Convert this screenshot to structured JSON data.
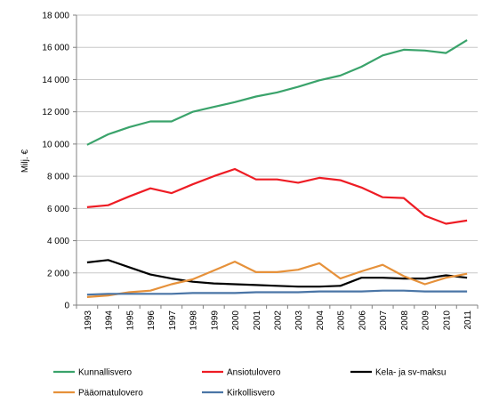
{
  "chart_data": {
    "type": "line",
    "title": "",
    "xlabel": "",
    "ylabel": "Milj. €",
    "ylim": [
      0,
      18000
    ],
    "y_ticks": [
      0,
      2000,
      4000,
      6000,
      8000,
      10000,
      12000,
      14000,
      16000,
      18000
    ],
    "y_tick_labels": [
      "0",
      "2 000",
      "4 000",
      "6 000",
      "8 000",
      "10 000",
      "12 000",
      "14 000",
      "16 000",
      "18 000"
    ],
    "categories": [
      "1993",
      "1994",
      "1995",
      "1996",
      "1997",
      "1998",
      "1999",
      "2000",
      "2001",
      "2002",
      "2003",
      "2004",
      "2005",
      "2006",
      "2007",
      "2008",
      "2009",
      "2010",
      "2011"
    ],
    "grid": "horizontal",
    "legend_position": "bottom",
    "series": [
      {
        "name": "Kunnallisvero",
        "color": "#3aa36b",
        "values": [
          9950,
          10600,
          11050,
          11400,
          11400,
          12000,
          12300,
          12600,
          12950,
          13200,
          13550,
          13950,
          14250,
          14800,
          15500,
          15850,
          15800,
          15650,
          16450
        ]
      },
      {
        "name": "Ansiotulovero",
        "color": "#ee1c24",
        "values": [
          6080,
          6200,
          6750,
          7250,
          6950,
          7500,
          8000,
          8450,
          7800,
          7800,
          7600,
          7900,
          7750,
          7300,
          6700,
          6650,
          5550,
          5050,
          5250
        ]
      },
      {
        "name": "Kela- ja sv-maksu",
        "color": "#000000",
        "values": [
          2650,
          2800,
          2350,
          1900,
          1650,
          1450,
          1350,
          1300,
          1250,
          1200,
          1150,
          1150,
          1200,
          1700,
          1700,
          1650,
          1650,
          1850,
          1700
        ]
      },
      {
        "name": "Pääomatulovero",
        "color": "#e6913a",
        "values": [
          500,
          600,
          800,
          900,
          1300,
          1600,
          2150,
          2700,
          2050,
          2050,
          2200,
          2600,
          1650,
          2100,
          2500,
          1800,
          1300,
          1700,
          1950
        ]
      },
      {
        "name": "Kirkollisvero",
        "color": "#4a75a6",
        "values": [
          650,
          700,
          700,
          700,
          700,
          750,
          750,
          750,
          800,
          800,
          800,
          850,
          850,
          850,
          900,
          900,
          850,
          850,
          850
        ]
      }
    ]
  }
}
